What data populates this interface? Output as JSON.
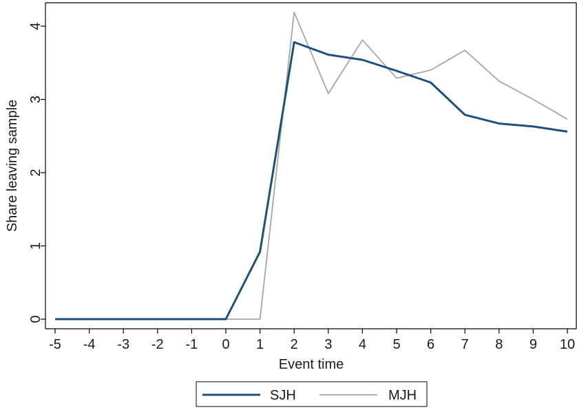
{
  "chart_data": {
    "type": "line",
    "title": "",
    "xlabel": "Event time",
    "ylabel": "Share leaving sample",
    "xlim": [
      -5,
      10
    ],
    "ylim": [
      0,
      4
    ],
    "x": [
      -5,
      -4,
      -3,
      -2,
      -1,
      0,
      1,
      2,
      3,
      4,
      5,
      6,
      7,
      8,
      9,
      10
    ],
    "x_tick_labels": [
      "-5",
      "-4",
      "-3",
      "-2",
      "-1",
      "0",
      "1",
      "2",
      "3",
      "4",
      "5",
      "6",
      "7",
      "8",
      "9",
      "10"
    ],
    "y_ticks": [
      0,
      1,
      2,
      3,
      4
    ],
    "y_tick_labels": [
      "0",
      "1",
      "2",
      "3",
      "4"
    ],
    "grid": false,
    "legend_position": "bottom",
    "series": [
      {
        "name": "SJH",
        "color": "#1f4e79",
        "values": [
          0,
          0,
          0,
          0,
          0,
          0,
          0.92,
          3.78,
          3.61,
          3.54,
          3.39,
          3.23,
          2.79,
          2.67,
          2.63,
          2.56
        ]
      },
      {
        "name": "MJH",
        "color": "#a6a6a6",
        "values": [
          0,
          0,
          0,
          0,
          0,
          0,
          0,
          4.19,
          3.08,
          3.81,
          3.29,
          3.4,
          3.67,
          3.25,
          3.0,
          2.73
        ]
      }
    ]
  }
}
